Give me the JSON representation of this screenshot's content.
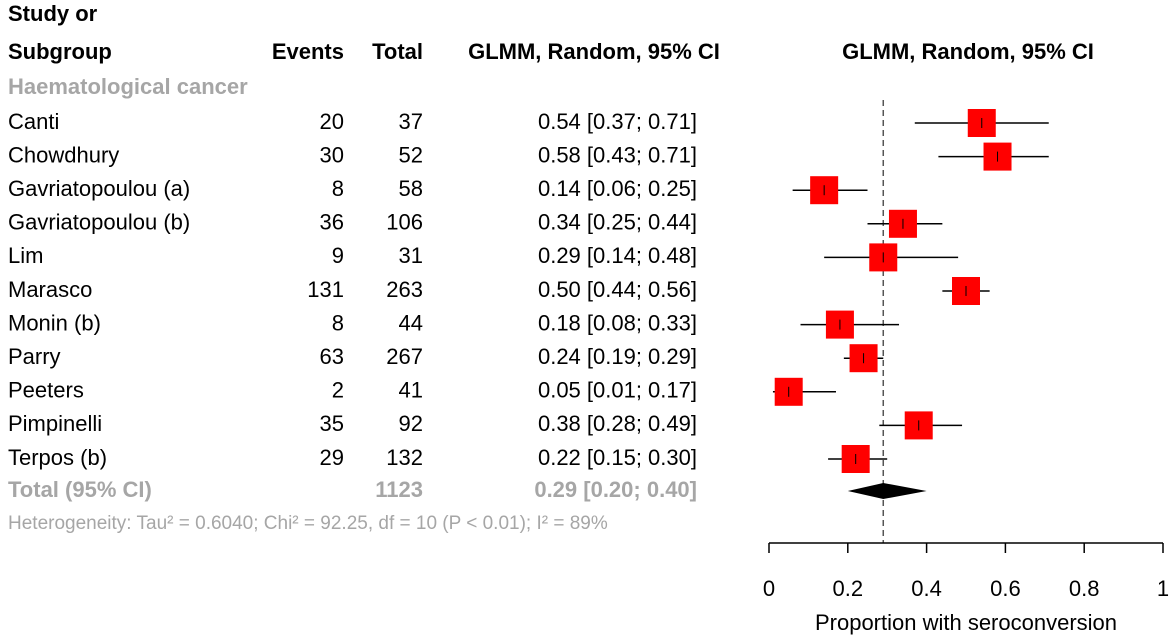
{
  "chart_data": {
    "type": "forest",
    "column_headers": {
      "study": [
        "Study or",
        "Subgroup"
      ],
      "events": "Events",
      "total": "Total",
      "ci": "GLMM, Random, 95% CI",
      "plot": "GLMM, Random, 95% CI"
    },
    "subgroup": "Haematological cancer",
    "categories": [
      "Canti",
      "Chowdhury",
      "Gavriatopoulou (a)",
      "Gavriatopoulou (b)",
      "Lim",
      "Marasco",
      "Monin (b)",
      "Parry",
      "Peeters",
      "Pimpinelli",
      "Terpos (b)"
    ],
    "events": [
      20,
      30,
      8,
      36,
      9,
      131,
      8,
      63,
      2,
      35,
      29
    ],
    "totals": [
      37,
      52,
      58,
      106,
      31,
      263,
      44,
      267,
      41,
      92,
      132
    ],
    "values": [
      0.54,
      0.58,
      0.14,
      0.34,
      0.29,
      0.5,
      0.18,
      0.24,
      0.05,
      0.38,
      0.22
    ],
    "lower": [
      0.37,
      0.43,
      0.06,
      0.25,
      0.14,
      0.44,
      0.08,
      0.19,
      0.01,
      0.28,
      0.15
    ],
    "upper": [
      0.71,
      0.71,
      0.25,
      0.44,
      0.48,
      0.56,
      0.33,
      0.29,
      0.17,
      0.49,
      0.3
    ],
    "value_labels": [
      "0.54 [0.37; 0.71]",
      "0.58 [0.43; 0.71]",
      "0.14 [0.06; 0.25]",
      "0.34 [0.25; 0.44]",
      "0.29 [0.14; 0.48]",
      "0.50 [0.44; 0.56]",
      "0.18 [0.08; 0.33]",
      "0.24 [0.19; 0.29]",
      "0.05 [0.01; 0.17]",
      "0.38 [0.28; 0.49]",
      "0.22 [0.15; 0.30]"
    ],
    "pooled": {
      "label": "Total (95% CI)",
      "total": 1123,
      "value": 0.29,
      "lower": 0.2,
      "upper": 0.4,
      "value_label": "0.29 [0.20; 0.40]"
    },
    "heterogeneity": "Heterogeneity: Tau² = 0.6040; Chi² = 92.25, df = 10 (P < 0.01); I² = 89%",
    "xlim": [
      0,
      1
    ],
    "xticks": [
      0,
      0.2,
      0.4,
      0.6,
      0.8,
      1
    ],
    "xlabel": "Proportion with seroconversion",
    "square_color": "#ff0000",
    "line_color": "#000000",
    "muted_color": "#a6a6a6",
    "reference_line": "dashed"
  }
}
